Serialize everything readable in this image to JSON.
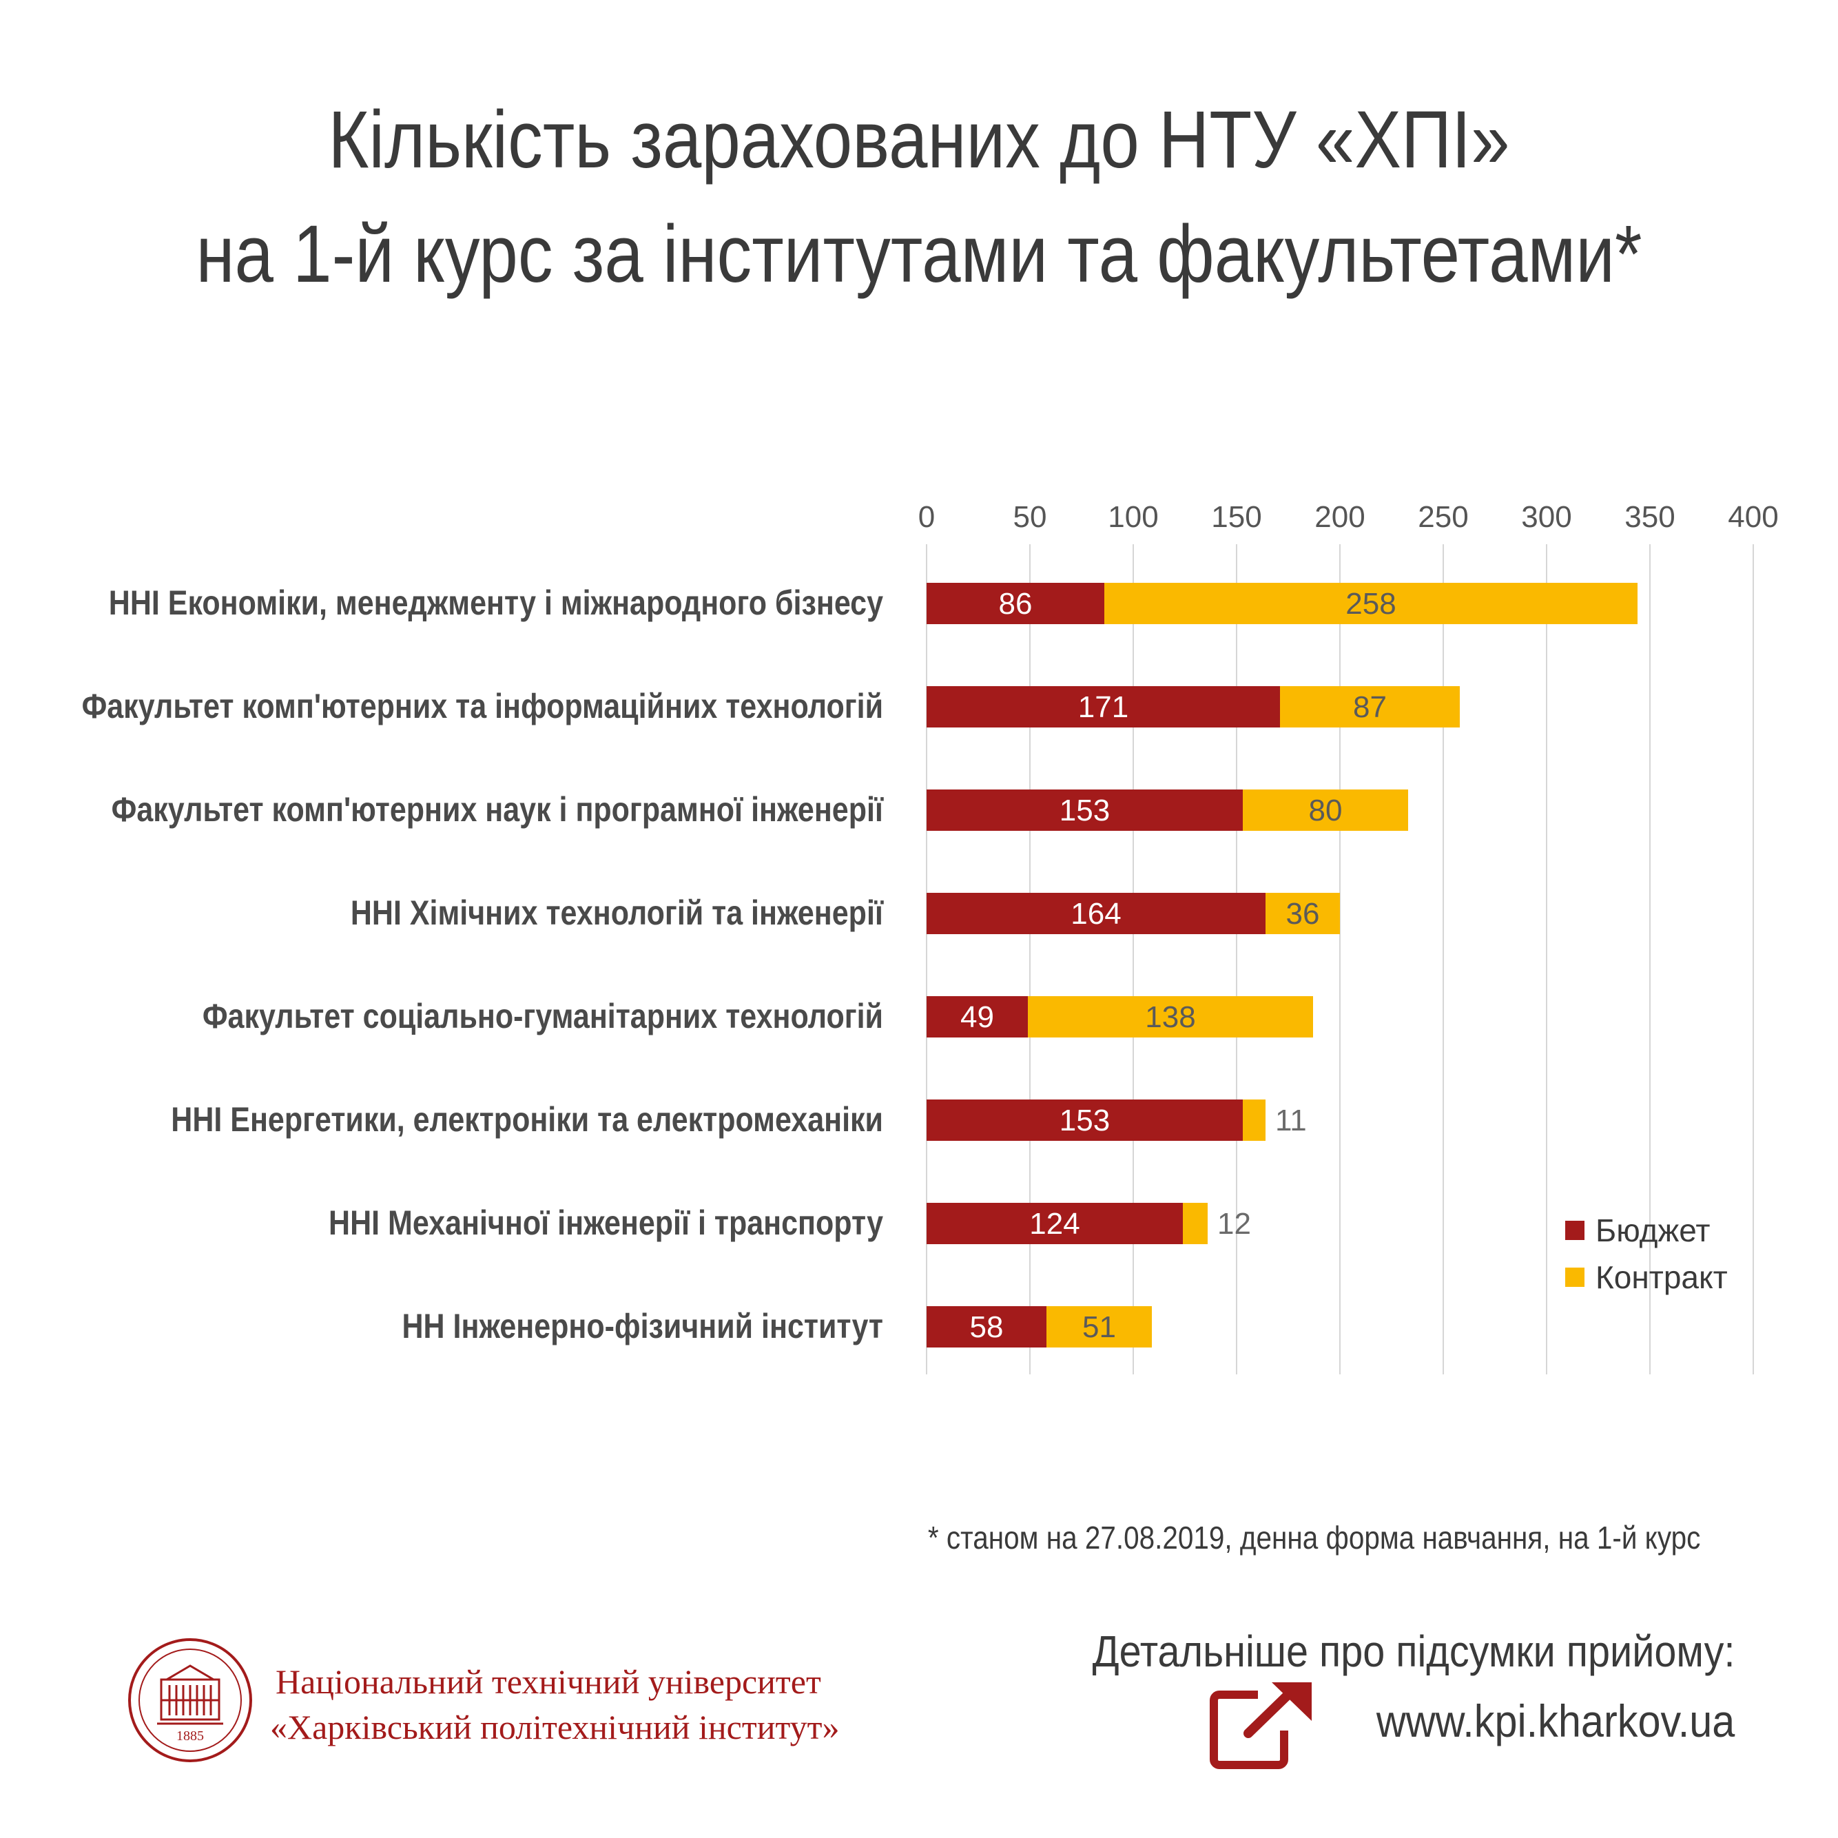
{
  "title": {
    "line1": "Кількість зарахованих до НТУ «ХПІ»",
    "line2": "на 1-й курс за інститутами та факультетами*"
  },
  "chart_data": {
    "type": "bar",
    "orientation": "horizontal",
    "stacked": true,
    "categories": [
      "ННІ Економіки, менеджменту і міжнародного бізнесу",
      "Факультет комп'ютерних та інформаційних технологій",
      "Факультет комп'ютерних наук і програмної інженерії",
      "ННІ Хімічних технологій та інженерії",
      "Факультет соціально-гуманітарних технологій",
      "ННІ Енергетики, електроніки та електромеханіки",
      "ННІ Механічної інженерії і транспорту",
      "НН Інженерно-фізичний інститут"
    ],
    "series": [
      {
        "name": "Бюджет",
        "color": "#a31b1b",
        "values": [
          86,
          171,
          153,
          164,
          49,
          153,
          124,
          58
        ]
      },
      {
        "name": "Контракт",
        "color": "#fab900",
        "values": [
          258,
          87,
          80,
          36,
          138,
          11,
          12,
          51
        ]
      }
    ],
    "xlim": [
      0,
      400
    ],
    "xticks": [
      "0",
      "50",
      "100",
      "150",
      "200",
      "250",
      "300",
      "350",
      "400"
    ],
    "axis_position": "top",
    "grid": true,
    "legend": "bottom-right"
  },
  "footnote": "* станом на 27.08.2019, денна форма навчання, на 1-й курс",
  "university": {
    "name_line1": "Національний технічний університет",
    "name_line2": "«Харківський політехнічний інститут»",
    "logo_year": "1885"
  },
  "more_info": {
    "label": "Детальніше про підсумки прийому:",
    "url": "www.kpi.kharkov.ua",
    "icon": "external-link-icon"
  }
}
